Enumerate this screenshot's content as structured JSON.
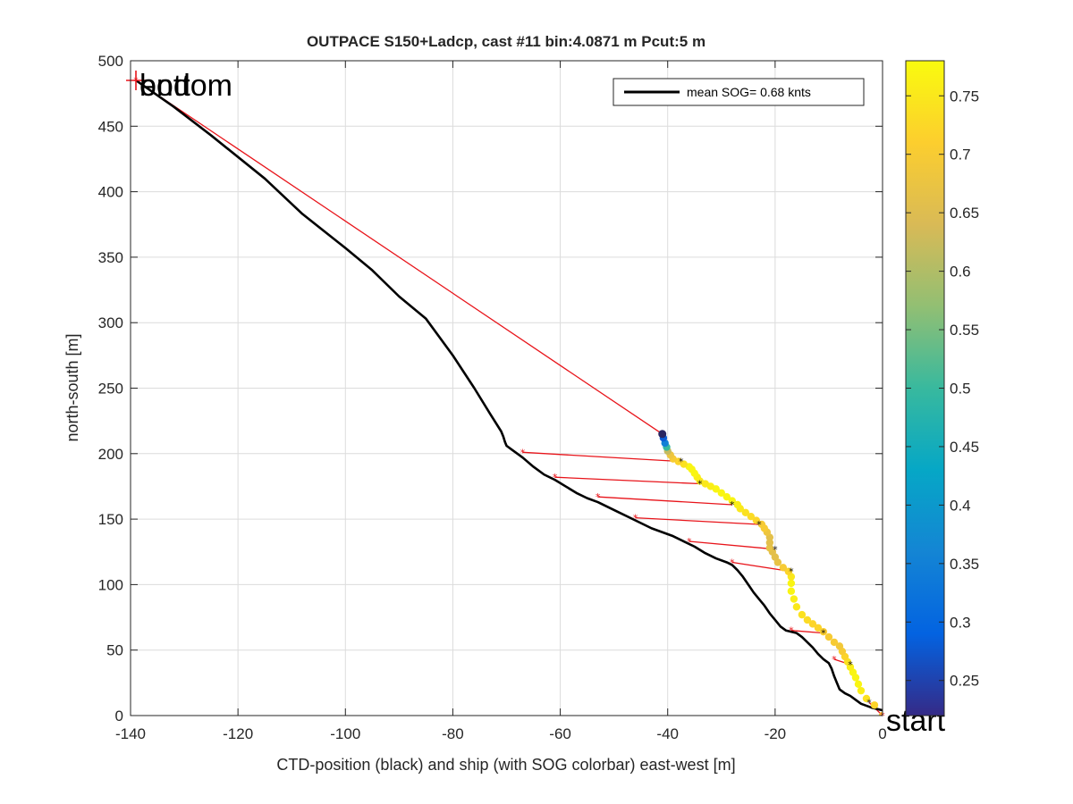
{
  "chart_data": {
    "type": "scatter",
    "title": "OUTPACE S150+Ladcp, cast #11 bin:4.0871 m  Pcut:5 m",
    "xlabel": "CTD-position (black) and ship (with SOG colorbar) east-west [m]",
    "ylabel": "north-south [m]",
    "xlim": [
      -140,
      0
    ],
    "ylim": [
      0,
      500
    ],
    "x_ticks": [
      "-140",
      "-120",
      "-100",
      "-80",
      "-60",
      "-40",
      "-20",
      "0"
    ],
    "y_ticks": [
      "0",
      "50",
      "100",
      "150",
      "200",
      "250",
      "300",
      "350",
      "400",
      "450",
      "500"
    ],
    "grid": true,
    "legend": {
      "placement": "top-right",
      "entries": [
        "mean SOG=  0.68 knts"
      ]
    },
    "annotations": [
      {
        "text": "bottom",
        "x": -139,
        "y": 485
      },
      {
        "text": "end",
        "x": -139,
        "y": 485
      },
      {
        "text": "start",
        "x": 0,
        "y": 0
      }
    ],
    "colorbar": {
      "label_ticks": [
        "0.25",
        "0.3",
        "0.35",
        "0.4",
        "0.45",
        "0.5",
        "0.55",
        "0.6",
        "0.65",
        "0.7",
        "0.75"
      ],
      "range": [
        0.22,
        0.78
      ],
      "colormap": [
        "#352a87",
        "#0363e1",
        "#1485d4",
        "#06a7c6",
        "#38b99e",
        "#92bf73",
        "#d9ba56",
        "#fcce2e",
        "#f9fb0e"
      ]
    },
    "series": [
      {
        "name": "mean SOG=  0.68 knts",
        "style": "ctd-track",
        "color": "#000000",
        "points": [
          [
            0,
            4
          ],
          [
            -2,
            6
          ],
          [
            -4,
            9
          ],
          [
            -5,
            12
          ],
          [
            -6,
            15
          ],
          [
            -7,
            17
          ],
          [
            -8,
            20
          ],
          [
            -8.5,
            25
          ],
          [
            -9,
            30
          ],
          [
            -9.5,
            36
          ],
          [
            -10,
            40
          ],
          [
            -11,
            43
          ],
          [
            -12,
            47
          ],
          [
            -13,
            52
          ],
          [
            -14,
            56
          ],
          [
            -15,
            60
          ],
          [
            -16,
            63
          ],
          [
            -18,
            65
          ],
          [
            -19,
            68
          ],
          [
            -20,
            73
          ],
          [
            -21,
            78
          ],
          [
            -22,
            84
          ],
          [
            -23,
            89
          ],
          [
            -24,
            94
          ],
          [
            -25,
            100
          ],
          [
            -26,
            106
          ],
          [
            -27,
            111
          ],
          [
            -28,
            115
          ],
          [
            -29,
            117
          ],
          [
            -31,
            120
          ],
          [
            -33,
            124
          ],
          [
            -35,
            129
          ],
          [
            -37,
            133
          ],
          [
            -39,
            137
          ],
          [
            -41,
            140
          ],
          [
            -43,
            143
          ],
          [
            -45,
            147
          ],
          [
            -47,
            151
          ],
          [
            -49,
            155
          ],
          [
            -51,
            159
          ],
          [
            -53,
            163
          ],
          [
            -55,
            166
          ],
          [
            -57,
            170
          ],
          [
            -59,
            175
          ],
          [
            -61,
            180
          ],
          [
            -63,
            184
          ],
          [
            -65,
            190
          ],
          [
            -67,
            197
          ],
          [
            -69,
            203
          ],
          [
            -70,
            206
          ],
          [
            -70.3,
            209
          ],
          [
            -70.6,
            213
          ],
          [
            -71,
            217
          ],
          [
            -73,
            230
          ],
          [
            -76,
            250
          ],
          [
            -80,
            275
          ],
          [
            -85,
            303
          ],
          [
            -90,
            320
          ],
          [
            -95,
            340
          ],
          [
            -100,
            357
          ],
          [
            -108,
            383
          ],
          [
            -115,
            410
          ],
          [
            -125,
            443
          ],
          [
            -132,
            465
          ],
          [
            -139,
            485
          ]
        ]
      },
      {
        "name": "ship",
        "style": "sog-scatter",
        "points": [
          [
            0,
            0,
            0.7
          ],
          [
            -1.5,
            8,
            0.72
          ],
          [
            -3,
            13,
            0.74
          ],
          [
            -4,
            19,
            0.76
          ],
          [
            -4.5,
            24,
            0.77
          ],
          [
            -5,
            29,
            0.77
          ],
          [
            -5.5,
            33,
            0.77
          ],
          [
            -6,
            37,
            0.76
          ],
          [
            -6.5,
            41,
            0.74
          ],
          [
            -7,
            45,
            0.72
          ],
          [
            -7.5,
            49,
            0.7
          ],
          [
            -8,
            53,
            0.69
          ],
          [
            -9,
            56,
            0.7
          ],
          [
            -10,
            60,
            0.7
          ],
          [
            -11,
            64,
            0.71
          ],
          [
            -12,
            67,
            0.72
          ],
          [
            -13,
            70,
            0.72
          ],
          [
            -14,
            73,
            0.73
          ],
          [
            -15,
            77,
            0.74
          ],
          [
            -16,
            83,
            0.75
          ],
          [
            -16.5,
            89,
            0.76
          ],
          [
            -17,
            95,
            0.77
          ],
          [
            -17,
            101,
            0.77
          ],
          [
            -17,
            106,
            0.75
          ],
          [
            -17.5,
            110,
            0.72
          ],
          [
            -18.5,
            113,
            0.7
          ],
          [
            -19.5,
            117,
            0.67
          ],
          [
            -20,
            121,
            0.66
          ],
          [
            -20.5,
            125,
            0.66
          ],
          [
            -21,
            128,
            0.67
          ],
          [
            -21,
            132,
            0.66
          ],
          [
            -21,
            136,
            0.66
          ],
          [
            -21.5,
            140,
            0.68
          ],
          [
            -22,
            143,
            0.7
          ],
          [
            -22.5,
            146,
            0.7
          ],
          [
            -23.5,
            149,
            0.72
          ],
          [
            -24.5,
            152,
            0.73
          ],
          [
            -25.5,
            155,
            0.74
          ],
          [
            -26.5,
            158,
            0.75
          ],
          [
            -27,
            161,
            0.76
          ],
          [
            -28,
            164,
            0.77
          ],
          [
            -29,
            167,
            0.77
          ],
          [
            -30,
            170,
            0.77
          ],
          [
            -31,
            173,
            0.77
          ],
          [
            -32,
            175,
            0.76
          ],
          [
            -33,
            177,
            0.75
          ],
          [
            -34,
            179,
            0.75
          ],
          [
            -34.5,
            182,
            0.76
          ],
          [
            -35,
            185,
            0.77
          ],
          [
            -35.5,
            188,
            0.77
          ],
          [
            -36,
            190,
            0.77
          ],
          [
            -37,
            192,
            0.74
          ],
          [
            -38,
            194,
            0.72
          ],
          [
            -39,
            196,
            0.7
          ],
          [
            -39.5,
            199,
            0.68
          ],
          [
            -40,
            202,
            0.62
          ],
          [
            -40.2,
            205,
            0.5
          ],
          [
            -40.5,
            208,
            0.35
          ],
          [
            -40.8,
            212,
            0.28
          ],
          [
            -41,
            215,
            0.23
          ]
        ]
      }
    ],
    "connectors": [
      [
        [
          -139,
          485
        ],
        [
          -41,
          215
        ]
      ],
      [
        [
          -67,
          201
        ],
        [
          -37.5,
          194
        ]
      ],
      [
        [
          -61,
          182
        ],
        [
          -34,
          177
        ]
      ],
      [
        [
          -53,
          167
        ],
        [
          -28,
          161
        ]
      ],
      [
        [
          -46,
          151
        ],
        [
          -23,
          146
        ]
      ],
      [
        [
          -36,
          133
        ],
        [
          -20,
          127
        ]
      ],
      [
        [
          -28,
          117
        ],
        [
          -17,
          110
        ]
      ],
      [
        [
          -17,
          65
        ],
        [
          -11,
          63
        ]
      ],
      [
        [
          -9,
          43
        ],
        [
          -6,
          39
        ]
      ],
      [
        [
          0,
          0
        ],
        [
          -2.5,
          10
        ]
      ]
    ]
  }
}
